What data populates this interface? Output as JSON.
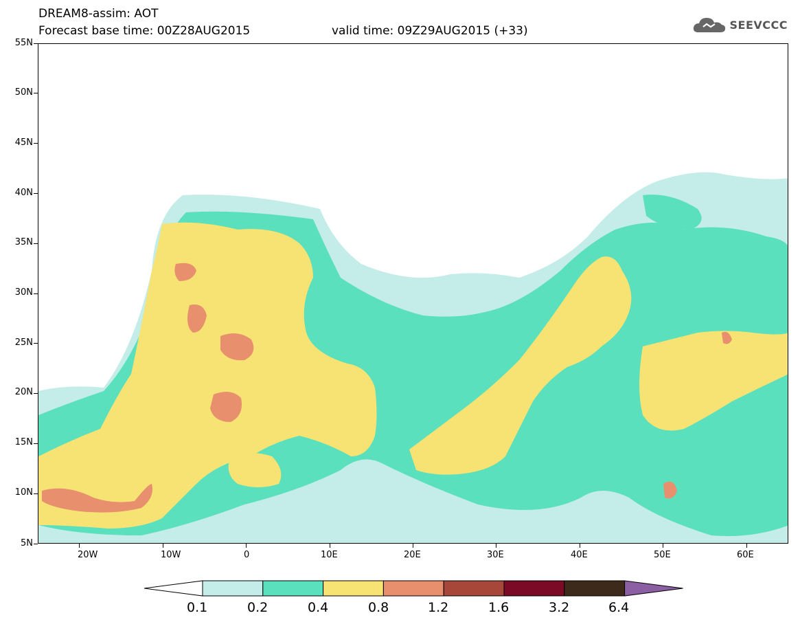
{
  "header": {
    "title_line1": "DREAM8-assim: AOT",
    "title_line2": "Forecast base time: 00Z28AUG2015",
    "valid_time": "valid time: 09Z29AUG2015 (+33)",
    "logo_text": "SEEVCCC"
  },
  "map": {
    "lat_labels": [
      "55N",
      "50N",
      "45N",
      "40N",
      "35N",
      "30N",
      "25N",
      "20N",
      "15N",
      "10N",
      "5N"
    ],
    "lon_labels": [
      "20W",
      "10W",
      "0",
      "10E",
      "20E",
      "30E",
      "40E",
      "50E",
      "60E"
    ],
    "lat_range": [
      5,
      55
    ],
    "lon_range": [
      -25,
      65
    ]
  },
  "colorbar": {
    "labels": [
      "0.1",
      "0.2",
      "0.4",
      "0.8",
      "1.2",
      "1.6",
      "3.2",
      "6.4"
    ],
    "colors": [
      "#ffffff",
      "#c4ece8",
      "#5ae0bd",
      "#f6e374",
      "#e8906d",
      "#a6473a",
      "#7a0a26",
      "#3d2a1a",
      "#8c5ea3"
    ]
  }
}
